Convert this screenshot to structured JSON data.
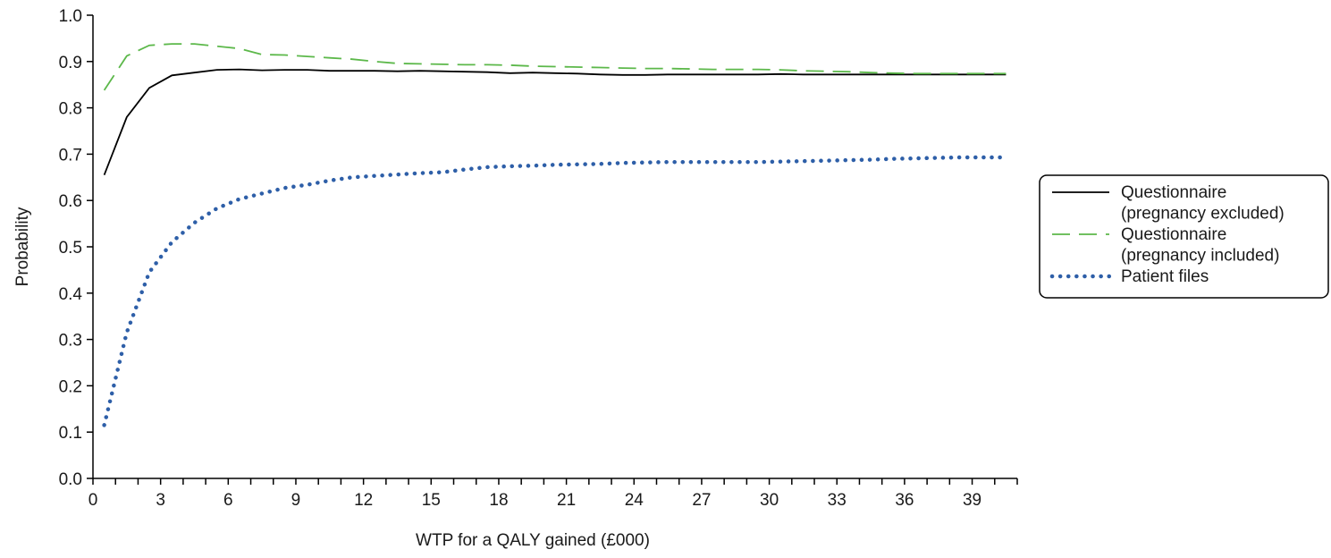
{
  "chart_data": {
    "type": "line",
    "title": "",
    "xlabel": "WTP for a QALY gained (£000)",
    "ylabel": "Probability",
    "xlim": [
      0,
      41
    ],
    "ylim": [
      0,
      1
    ],
    "x_ticks": [
      0,
      3,
      6,
      9,
      12,
      15,
      18,
      21,
      24,
      27,
      30,
      33,
      36,
      39
    ],
    "x_minor_step": 1,
    "y_ticks": [
      0.0,
      0.1,
      0.2,
      0.3,
      0.4,
      0.5,
      0.6,
      0.7,
      0.8,
      0.9,
      1.0
    ],
    "y_tick_labels": [
      "0.0",
      "0.1",
      "0.2",
      "0.3",
      "0.4",
      "0.5",
      "0.6",
      "0.7",
      "0.8",
      "0.9",
      "1.0"
    ],
    "grid": false,
    "legend_position": "right",
    "x": [
      0.5,
      1.5,
      2.5,
      3.5,
      4.5,
      5.5,
      6.5,
      7.5,
      8.5,
      9.5,
      10.5,
      11.5,
      12.5,
      13.5,
      14.5,
      15.5,
      16.5,
      17.5,
      18.5,
      19.5,
      20.5,
      21.5,
      22.5,
      23.5,
      24.5,
      25.5,
      26.5,
      27.5,
      28.5,
      29.5,
      30.5,
      31.5,
      32.5,
      33.5,
      34.5,
      35.5,
      36.5,
      37.5,
      38.5,
      39.5,
      40.5
    ],
    "series": [
      {
        "name": "Questionnaire (pregnancy excluded)",
        "legend_lines": [
          "Questionnaire",
          "(pregnancy excluded)"
        ],
        "style": "solid",
        "color": "#000000",
        "values": [
          0.655,
          0.78,
          0.843,
          0.87,
          0.876,
          0.882,
          0.883,
          0.881,
          0.882,
          0.882,
          0.88,
          0.88,
          0.88,
          0.879,
          0.88,
          0.879,
          0.878,
          0.877,
          0.875,
          0.876,
          0.875,
          0.874,
          0.872,
          0.871,
          0.871,
          0.872,
          0.872,
          0.872,
          0.872,
          0.872,
          0.873,
          0.872,
          0.872,
          0.872,
          0.872,
          0.872,
          0.872,
          0.872,
          0.872,
          0.872,
          0.872
        ]
      },
      {
        "name": "Questionnaire (pregnancy included)",
        "legend_lines": [
          "Questionnaire",
          "(pregnancy included)"
        ],
        "style": "dashed",
        "color": "#5cb84a",
        "values": [
          0.838,
          0.912,
          0.935,
          0.938,
          0.938,
          0.933,
          0.928,
          0.915,
          0.914,
          0.911,
          0.908,
          0.905,
          0.9,
          0.896,
          0.895,
          0.894,
          0.893,
          0.893,
          0.892,
          0.89,
          0.889,
          0.888,
          0.887,
          0.886,
          0.885,
          0.885,
          0.884,
          0.883,
          0.883,
          0.883,
          0.882,
          0.88,
          0.879,
          0.878,
          0.876,
          0.875,
          0.874,
          0.874,
          0.874,
          0.874,
          0.874
        ]
      },
      {
        "name": "Patient files",
        "legend_lines": [
          "Patient files"
        ],
        "style": "dotted",
        "color": "#2e5fa8",
        "values": [
          0.115,
          0.315,
          0.445,
          0.51,
          0.552,
          0.583,
          0.603,
          0.615,
          0.627,
          0.634,
          0.643,
          0.65,
          0.653,
          0.656,
          0.659,
          0.661,
          0.667,
          0.672,
          0.674,
          0.675,
          0.677,
          0.678,
          0.679,
          0.681,
          0.682,
          0.683,
          0.683,
          0.683,
          0.683,
          0.683,
          0.684,
          0.685,
          0.686,
          0.687,
          0.688,
          0.69,
          0.691,
          0.692,
          0.693,
          0.693,
          0.693
        ]
      }
    ]
  }
}
